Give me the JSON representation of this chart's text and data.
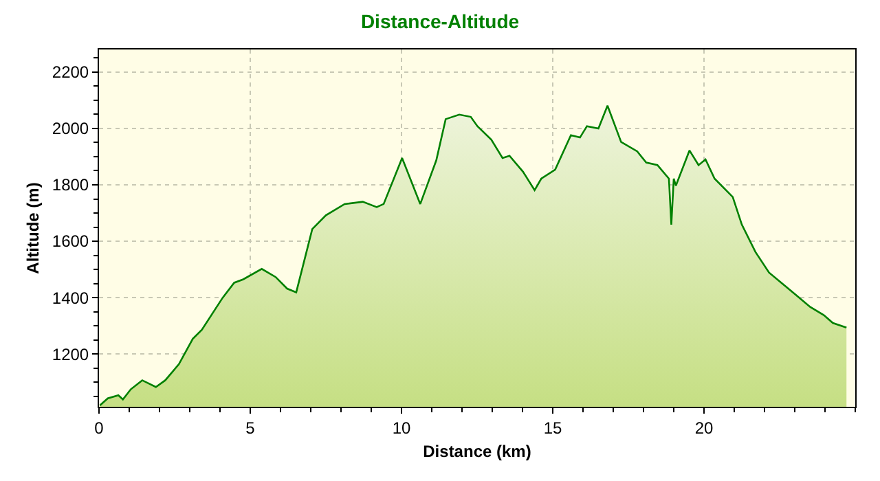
{
  "chart_data": {
    "type": "area",
    "title": "Distance-Altitude",
    "xlabel": "Distance (km)",
    "ylabel": "Altitude (m)",
    "color": "#008000",
    "x": [
      0.03,
      0.29,
      0.64,
      0.79,
      1.05,
      1.43,
      1.88,
      2.19,
      2.64,
      3.1,
      3.4,
      4.09,
      4.47,
      4.77,
      5.38,
      5.84,
      6.22,
      6.52,
      7.05,
      7.5,
      8.12,
      8.72,
      9.18,
      9.41,
      10.02,
      10.62,
      11.15,
      11.46,
      11.91,
      12.29,
      12.51,
      12.97,
      13.34,
      13.57,
      14.02,
      14.4,
      14.62,
      15.08,
      15.6,
      15.9,
      16.13,
      16.51,
      16.81,
      17.26,
      17.79,
      18.09,
      18.46,
      18.84,
      18.92,
      19.0,
      19.07,
      19.52,
      19.82,
      20.05,
      20.35,
      20.95,
      21.25,
      21.7,
      22.15,
      22.61,
      23.06,
      23.51,
      23.96,
      24.26,
      24.71
    ],
    "values": [
      1018,
      1043,
      1054,
      1039,
      1075,
      1107,
      1083,
      1107,
      1164,
      1254,
      1286,
      1400,
      1453,
      1465,
      1502,
      1473,
      1432,
      1419,
      1643,
      1692,
      1732,
      1740,
      1721,
      1732,
      1895,
      1732,
      1887,
      2033,
      2049,
      2041,
      2008,
      1960,
      1895,
      1903,
      1846,
      1781,
      1822,
      1854,
      1976,
      1968,
      2008,
      2000,
      2081,
      1952,
      1919,
      1879,
      1870,
      1822,
      1659,
      1822,
      1797,
      1922,
      1870,
      1890,
      1822,
      1757,
      1659,
      1562,
      1489,
      1448,
      1408,
      1367,
      1338,
      1310,
      1294
    ],
    "xlim": [
      0,
      25
    ],
    "ylim": [
      1013,
      2280
    ],
    "xticks": [
      0,
      5,
      10,
      15,
      20
    ],
    "yticks": [
      1200,
      1400,
      1600,
      1800,
      2000,
      2200
    ],
    "grid": true,
    "line_style": "solid",
    "marker": "none"
  }
}
